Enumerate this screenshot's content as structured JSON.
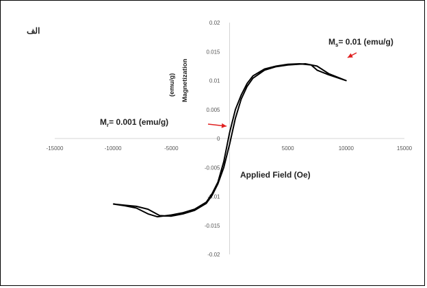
{
  "panel_label": "الف",
  "chart_data": {
    "type": "line",
    "xlabel": "Applied Field (Oe)",
    "ylabel": "Magnetization",
    "ylabel_unit": "(emu/g)",
    "xlim": [
      -15000,
      15000
    ],
    "ylim": [
      -0.02,
      0.02
    ],
    "x_ticks": [
      -15000,
      -10000,
      -5000,
      0,
      5000,
      10000,
      15000
    ],
    "y_ticks": [
      0.02,
      0.015,
      0.01,
      0.005,
      0,
      -0.005,
      -0.01,
      -0.015,
      -0.02
    ],
    "grid": false,
    "series": [
      {
        "name": "",
        "color": "#000000",
        "points": [
          [
            -10000,
            -0.0113
          ],
          [
            -9000,
            -0.0116
          ],
          [
            -8000,
            -0.012
          ],
          [
            -7000,
            -0.013
          ],
          [
            -6200,
            -0.0135
          ],
          [
            -5000,
            -0.0132
          ],
          [
            -4000,
            -0.0128
          ],
          [
            -3000,
            -0.0122
          ],
          [
            -2000,
            -0.011
          ],
          [
            -1500,
            -0.0095
          ],
          [
            -1000,
            -0.0075
          ],
          [
            -500,
            -0.004
          ],
          [
            0,
            0.001
          ],
          [
            500,
            0.005
          ],
          [
            1000,
            0.0075
          ],
          [
            1500,
            0.0095
          ],
          [
            2000,
            0.0108
          ],
          [
            3000,
            0.012
          ],
          [
            4000,
            0.0125
          ],
          [
            5000,
            0.0128
          ],
          [
            6000,
            0.0129
          ],
          [
            7000,
            0.0127
          ],
          [
            7500,
            0.0118
          ],
          [
            8500,
            0.011
          ],
          [
            10000,
            0.01
          ],
          [
            8500,
            0.0112
          ],
          [
            7500,
            0.0125
          ],
          [
            6500,
            0.0129
          ],
          [
            5000,
            0.0127
          ],
          [
            4000,
            0.0124
          ],
          [
            3000,
            0.0118
          ],
          [
            2000,
            0.0104
          ],
          [
            1500,
            0.009
          ],
          [
            1000,
            0.0068
          ],
          [
            500,
            0.0035
          ],
          [
            0,
            -0.001
          ],
          [
            -500,
            -0.005
          ],
          [
            -1000,
            -0.0078
          ],
          [
            -1500,
            -0.0098
          ],
          [
            -2000,
            -0.0112
          ],
          [
            -3000,
            -0.0124
          ],
          [
            -4000,
            -0.013
          ],
          [
            -5000,
            -0.0134
          ],
          [
            -6000,
            -0.0133
          ],
          [
            -7000,
            -0.0122
          ],
          [
            -8000,
            -0.0117
          ],
          [
            -9000,
            -0.0115
          ],
          [
            -10000,
            -0.0113
          ]
        ]
      }
    ],
    "annotations": [
      {
        "id": "ms",
        "text": "Ms= 0.01 (emu/g)",
        "main": "M",
        "sub": "s",
        "rest": "= 0.01 (emu/g)",
        "color": "#e02020"
      },
      {
        "id": "mr",
        "text": "Mr= 0.001 (emu/g)",
        "main": "M",
        "sub": "r",
        "rest": "= 0.001 (emu/g)",
        "color": "#e02020"
      }
    ]
  }
}
